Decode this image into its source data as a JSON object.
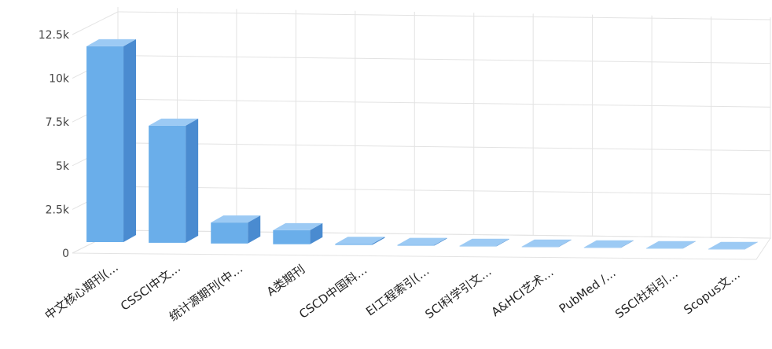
{
  "chart_data": {
    "type": "bar",
    "title": "",
    "xlabel": "",
    "ylabel": "",
    "ylim": [
      0,
      12500
    ],
    "yticks": [
      {
        "value": 0,
        "label": "0"
      },
      {
        "value": 2500,
        "label": "2.5k"
      },
      {
        "value": 5000,
        "label": "5k"
      },
      {
        "value": 7500,
        "label": "7.5k"
      },
      {
        "value": 10000,
        "label": "10k"
      },
      {
        "value": 12500,
        "label": "12.5k"
      }
    ],
    "categories": [
      "中文核心期刊(…",
      "CSSCI中文…",
      "统计源期刊(中…",
      "A类期刊",
      "CSCD中国科…",
      "EI工程索引(…",
      "SCI科学引文…",
      "A&HCI艺术…",
      "PubMed /…",
      "SSCI社科引…",
      "Scopus文…"
    ],
    "values": [
      11200,
      6700,
      1200,
      800,
      60,
      40,
      30,
      25,
      20,
      15,
      10
    ],
    "grid": true,
    "legend": "none",
    "colors": {
      "bar_front": "#6aaeea",
      "bar_side": "#4a8bd0",
      "bar_top": "#9ccaf4",
      "grid": "#e3e3e3"
    }
  }
}
